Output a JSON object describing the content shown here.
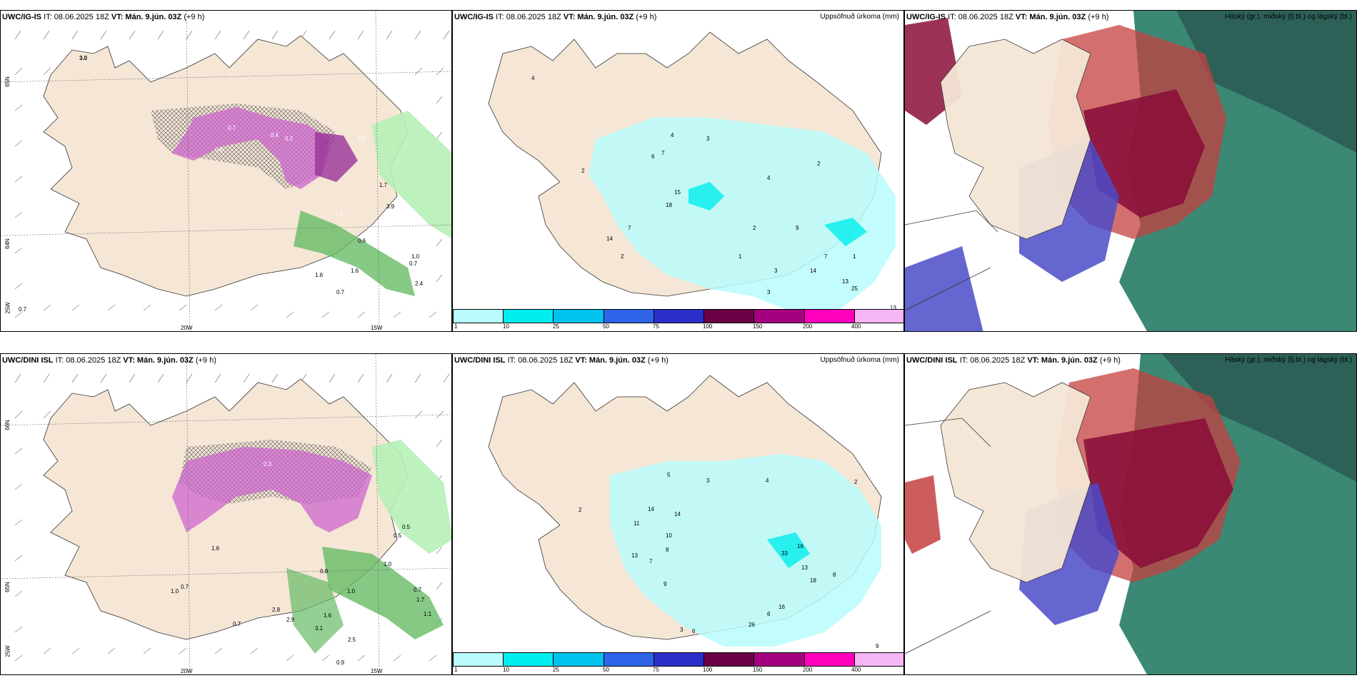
{
  "rows": [
    {
      "model": "UWC/IG-IS",
      "init": "IT: 08.06.2025 18Z",
      "valid_label": "VT:",
      "valid": "Mán. 9.jún. 03Z",
      "lead": "(+9 h)",
      "precip_title": "Uppsöfnuð úrkoma (mm)",
      "cloud_title": "Háský (gr.), miðský (fj.bl.) og lágský (bl.)",
      "lat_labels": [
        "65N",
        "64N",
        "25W"
      ],
      "lon_labels": [
        "20W",
        "15W"
      ],
      "precip_values": [
        "4",
        "4",
        "3",
        "6",
        "7",
        "2",
        "15",
        "18",
        "7",
        "14",
        "2",
        "1",
        "2",
        "9",
        "7",
        "1",
        "3",
        "4",
        "2",
        "14",
        "25",
        "13",
        "3",
        "13"
      ],
      "left_values": [
        "3.0",
        "0.4",
        "0.2",
        "0.6",
        "0.7",
        "0.6",
        "3.2",
        "1.7",
        "1.0",
        "0.7",
        "0.6",
        "1.6",
        "0.7",
        "1.6",
        "0.7",
        "3.9",
        "2.4"
      ]
    },
    {
      "model": "UWC/DINI ISL",
      "init": "IT: 08.06.2025 18Z",
      "valid_label": "VT:",
      "valid": "Mán. 9.jún. 03Z",
      "lead": "(+9 h)",
      "precip_title": "Uppsöfnuð úrkoma (mm)",
      "cloud_title": "Háský (gr.), miðský (fj.bl.) og lágský (bl.)",
      "lat_labels": [
        "66N",
        "65N",
        "25W"
      ],
      "lon_labels": [
        "20W",
        "15W"
      ],
      "precip_values": [
        "2",
        "5",
        "3",
        "14",
        "11",
        "14",
        "10",
        "8",
        "13",
        "7",
        "9",
        "3",
        "6",
        "33",
        "16",
        "13",
        "18",
        "8",
        "26",
        "16",
        "9",
        "6",
        "2",
        "4"
      ],
      "left_values": [
        "1.0",
        "0.7",
        "0.5",
        "0.3",
        "1.6",
        "0.8",
        "1.0",
        "0.5",
        "0.7",
        "1.7",
        "1.0",
        "2.8",
        "2.9",
        "3.1",
        "1.6",
        "2.5",
        "0.9",
        "0.7",
        "1.1"
      ]
    }
  ],
  "colorbar": {
    "ticks": [
      "1",
      "10",
      "25",
      "50",
      "75",
      "100",
      "150",
      "200",
      "400"
    ],
    "colors": [
      "#b9fbfb",
      "#00eeee",
      "#00c3ef",
      "#2e64e8",
      "#2b2fc9",
      "#6a0046",
      "#a4007f",
      "#ff00bb",
      "#f6b6f6"
    ]
  }
}
